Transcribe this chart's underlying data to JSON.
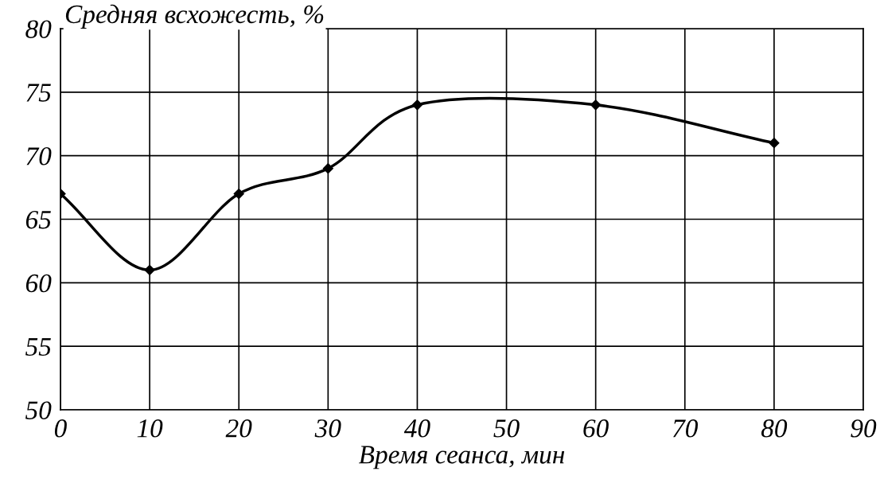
{
  "chart_data": {
    "type": "line",
    "xlabel": "Время сеанса, мин",
    "ylabel": "Средняя всхожесть, %",
    "x": [
      0,
      10,
      20,
      30,
      40,
      60,
      80
    ],
    "series": [
      {
        "color": "#000000",
        "values": [
          67,
          61,
          67,
          69,
          74,
          74,
          71
        ]
      }
    ],
    "xlim": [
      0,
      90
    ],
    "xticks": [
      0,
      10,
      20,
      30,
      40,
      50,
      60,
      70,
      80,
      90
    ],
    "ylim": [
      50,
      80
    ],
    "yticks": [
      50,
      55,
      60,
      65,
      70,
      75,
      80
    ],
    "grid": true,
    "marker": "diamond",
    "line_style": "solid"
  }
}
